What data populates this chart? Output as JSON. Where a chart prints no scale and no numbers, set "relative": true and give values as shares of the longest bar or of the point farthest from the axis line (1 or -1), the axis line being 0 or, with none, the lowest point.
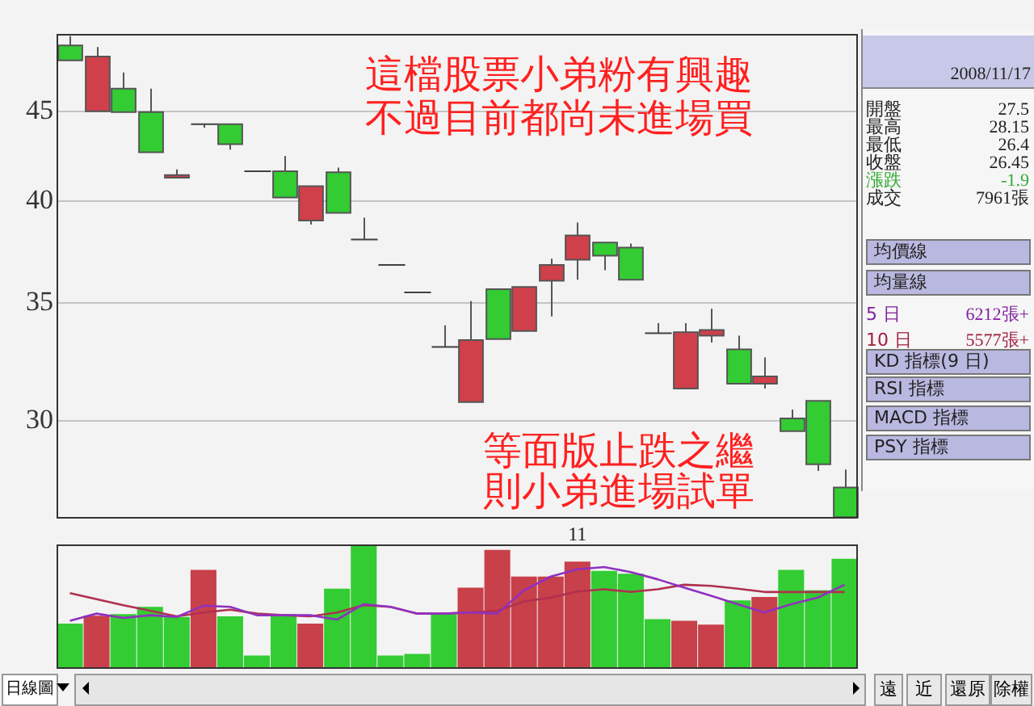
{
  "chart_data": [
    {
      "type": "candlestick",
      "categories": [
        null,
        null,
        null,
        null,
        null,
        null,
        null,
        null,
        null,
        null,
        null,
        null,
        null,
        null,
        null,
        null,
        null,
        null,
        null,
        "11",
        null,
        null,
        null,
        null,
        null,
        null,
        null,
        null,
        null,
        null
      ],
      "ohlc": [
        [
          49.05,
          49.65,
          48.1,
          48.1
        ],
        [
          45.0,
          48.95,
          45.0,
          48.35
        ],
        [
          46.35,
          47.35,
          44.95,
          44.95
        ],
        [
          44.95,
          46.35,
          42.65,
          42.65
        ],
        [
          41.25,
          41.7,
          41.25,
          41.4
        ],
        [
          44.25,
          44.25,
          44.05,
          44.25
        ],
        [
          44.25,
          44.25,
          42.8,
          43.1
        ],
        [
          41.6,
          41.6,
          41.6,
          41.6
        ],
        [
          41.6,
          42.45,
          40.2,
          40.2
        ],
        [
          39.0,
          40.8,
          38.8,
          40.8
        ],
        [
          41.55,
          41.8,
          39.4,
          39.4
        ],
        [
          38.05,
          39.15,
          38.05,
          38.05
        ],
        [
          36.8,
          36.8,
          36.8,
          36.8
        ],
        [
          35.5,
          35.5,
          35.5,
          35.5
        ],
        [
          33.05,
          34.0,
          33.05,
          33.05
        ],
        [
          30.75,
          35.1,
          30.75,
          33.35
        ],
        [
          35.65,
          35.65,
          33.4,
          33.4
        ],
        [
          33.75,
          35.75,
          33.75,
          35.75
        ],
        [
          36.05,
          37.1,
          34.4,
          36.8
        ],
        [
          37.05,
          38.9,
          36.1,
          38.25
        ],
        [
          37.9,
          37.9,
          36.55,
          37.25
        ],
        [
          37.65,
          37.85,
          36.1,
          36.1
        ],
        [
          33.65,
          34.1,
          33.65,
          33.65
        ],
        [
          31.3,
          34.1,
          31.3,
          33.7
        ],
        [
          33.55,
          34.75,
          33.25,
          33.8
        ],
        [
          32.95,
          33.55,
          31.5,
          31.5
        ],
        [
          31.5,
          32.6,
          31.3,
          31.8
        ],
        [
          30.1,
          30.45,
          29.6,
          29.6
        ],
        [
          30.8,
          30.8,
          28.1,
          28.35
        ],
        [
          27.5,
          28.15,
          26.4,
          26.45
        ]
      ],
      "colors": [
        "#33cc33",
        "#d0404a",
        "#33cc33",
        "#33cc33",
        "#d0404a",
        "#404040",
        "#33cc33",
        "#404040",
        "#33cc33",
        "#d0404a",
        "#33cc33",
        "#404040",
        "#404040",
        "#404040",
        "#404040",
        "#d0404a",
        "#33cc33",
        "#d0404a",
        "#d0404a",
        "#d0404a",
        "#33cc33",
        "#33cc33",
        "#404040",
        "#d0404a",
        "#d0404a",
        "#33cc33",
        "#d0404a",
        "#33cc33",
        "#33cc33",
        "#33cc33"
      ],
      "ylim": [
        26.4,
        49.8
      ],
      "yticks": [
        30,
        35,
        40,
        45
      ],
      "log": true,
      "grid": "y",
      "annotations": [
        "這檔股票小弟粉有興趣",
        "不過目前都尚未進場買",
        "等面版止跌之繼",
        "則小弟進場試單"
      ]
    },
    {
      "type": "bar",
      "categories": [
        null,
        null,
        null,
        null,
        null,
        null,
        null,
        null,
        null,
        null,
        null,
        null,
        null,
        null,
        null,
        null,
        null,
        null,
        null,
        null,
        null,
        null,
        null,
        null,
        null,
        null,
        null,
        null,
        null,
        null
      ],
      "relative": true,
      "marker": "none",
      "series": [
        {
          "type": "bar",
          "colors": [
            "#33cc33",
            "#c8404a",
            "#33cc33",
            "#33cc33",
            "#33cc33",
            "#c8404a",
            "#33cc33",
            "#33cc33",
            "#33cc33",
            "#c8404a",
            "#33cc33",
            "#33cc33",
            "#33cc33",
            "#33cc33",
            "#33cc33",
            "#c8404a",
            "#c8404a",
            "#c8404a",
            "#c8404a",
            "#c8404a",
            "#33cc33",
            "#33cc33",
            "#33cc33",
            "#c8404a",
            "#c8404a",
            "#33cc33",
            "#c8404a",
            "#33cc33",
            "#33cc33",
            "#33cc33"
          ],
          "values": [
            0.364,
            0.427,
            0.44,
            0.498,
            0.418,
            0.796,
            0.422,
            0.107,
            0.44,
            0.364,
            0.644,
            1,
            0.107,
            0.12,
            0.44,
            0.653,
            0.956,
            0.742,
            0.742,
            0.862,
            0.787,
            0.764,
            0.4,
            0.387,
            0.356,
            0.551,
            0.578,
            0.796,
            0.631,
            0.884
          ]
        },
        {
          "type": "line",
          "color": "#9030c0",
          "values": [
            0.387,
            0.444,
            0.409,
            0.431,
            0.418,
            0.507,
            0.498,
            0.431,
            0.431,
            0.431,
            0.396,
            0.52,
            0.498,
            0.444,
            0.444,
            0.453,
            0.444,
            0.631,
            0.742,
            0.8,
            0.818,
            0.778,
            0.72,
            0.653,
            0.587,
            0.52,
            0.453,
            0.52,
            0.573,
            0.676
          ]
        },
        {
          "type": "line",
          "color": "#b03050",
          "values": [
            0.609,
            0.56,
            0.511,
            0.467,
            0.422,
            0.453,
            0.476,
            0.444,
            0.431,
            0.422,
            0.453,
            0.511,
            0.498,
            0.444,
            0.444,
            0.453,
            0.467,
            0.542,
            0.573,
            0.622,
            0.64,
            0.618,
            0.64,
            0.676,
            0.667,
            0.644,
            0.618,
            0.618,
            0.618,
            0.618
          ]
        }
      ]
    },
    {
      "type": "other",
      "title": "2008/11/17",
      "annotations": [
        "開盤",
        "27.5",
        "最高",
        "28.15",
        "最低",
        "26.4",
        "收盤",
        "26.45",
        "漲跌",
        "-1.9",
        "成交",
        "7961張",
        "均價線",
        "均量線",
        "5 日",
        "6212張+",
        "10 日",
        "5577張+",
        "KD 指標(9 日)",
        "RSI 指標",
        "MACD 指標",
        "PSY 指標",
        "日線圖",
        "遠",
        "近",
        "還原",
        "除權"
      ]
    }
  ]
}
